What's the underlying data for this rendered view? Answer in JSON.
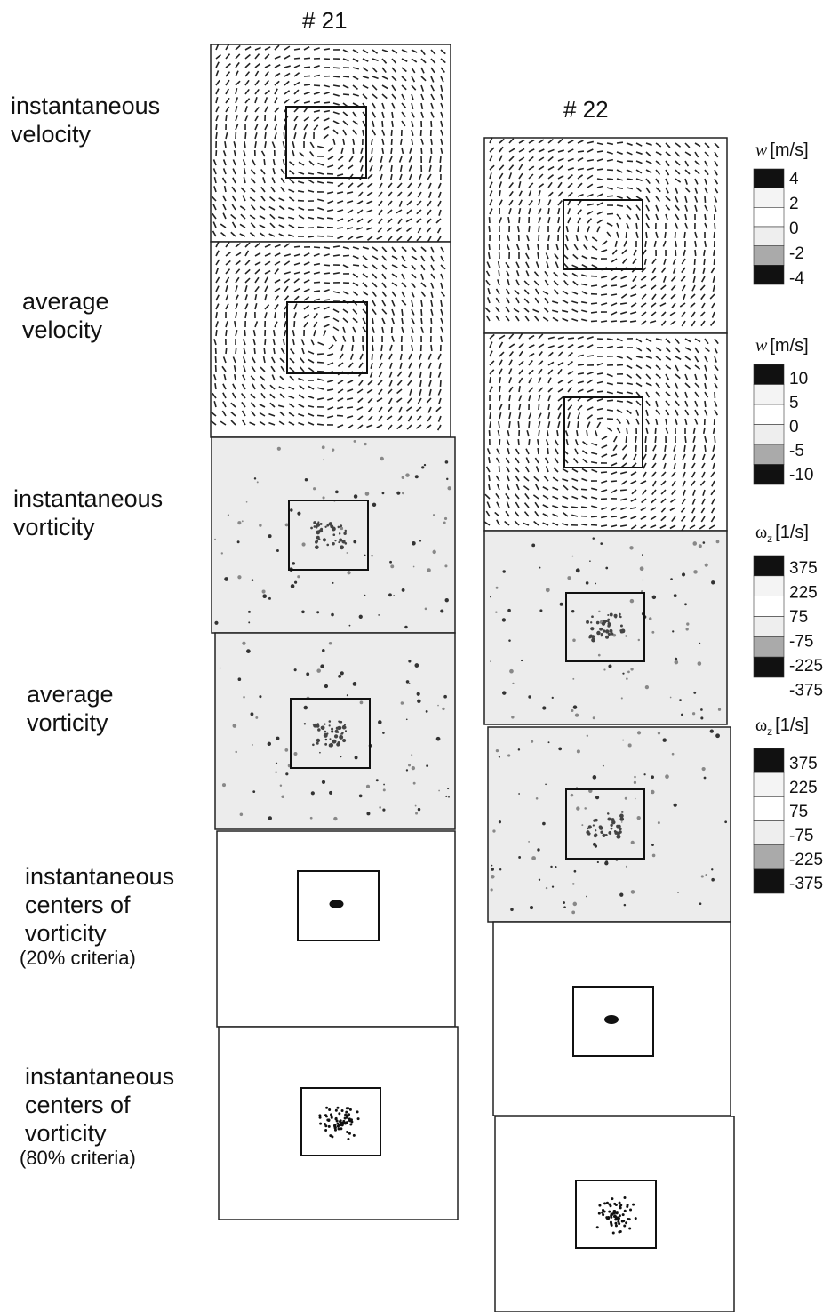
{
  "columns": [
    {
      "title": "# 21"
    },
    {
      "title": "# 22"
    }
  ],
  "rows": [
    {
      "lines": [
        "instantaneous",
        "velocity"
      ]
    },
    {
      "lines": [
        "average",
        "velocity"
      ]
    },
    {
      "lines": [
        "instantaneous",
        "vorticity"
      ]
    },
    {
      "lines": [
        "average",
        "vorticity"
      ]
    },
    {
      "lines": [
        "instantaneous",
        "centers of",
        "vorticity"
      ],
      "note": "(20% criteria)"
    },
    {
      "lines": [
        "instantaneous",
        "centers of",
        "vorticity"
      ],
      "note": "(80% criteria)"
    }
  ],
  "colorbars": [
    {
      "symbol": "w",
      "unit": "[m/s]",
      "ticks": [
        4,
        2,
        0,
        -2,
        -4
      ]
    },
    {
      "symbol": "w",
      "unit": "[m/s]",
      "ticks": [
        10,
        5,
        0,
        -5,
        -10
      ]
    },
    {
      "symbol": "ω",
      "subscript": "z",
      "unit": "[1/s]",
      "ticks": [
        375,
        225,
        75,
        -75,
        -225,
        -375
      ]
    },
    {
      "symbol": "ω",
      "subscript": "z",
      "unit": "[1/s]",
      "ticks": [
        375,
        225,
        75,
        -75,
        -225,
        -375
      ]
    }
  ]
}
